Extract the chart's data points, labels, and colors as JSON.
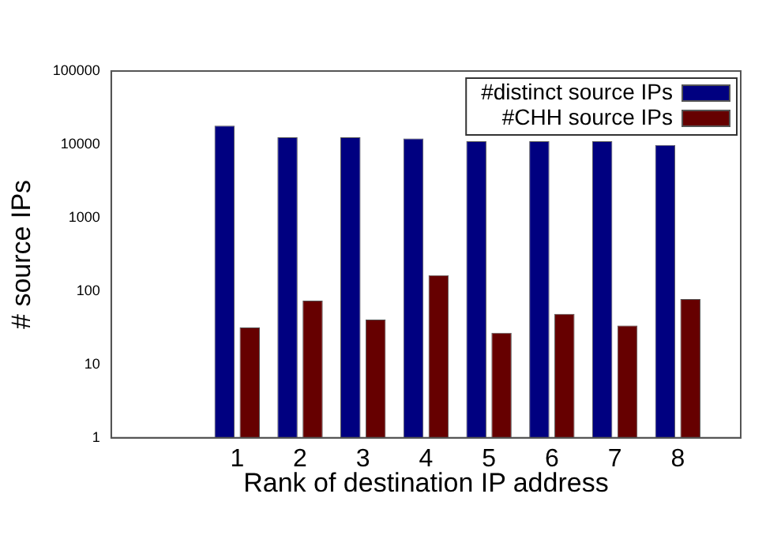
{
  "chart_data": {
    "type": "bar",
    "xlabel": "Rank of destination IP address",
    "ylabel": "# source IPs",
    "x": [
      1,
      2,
      3,
      4,
      5,
      6,
      7,
      8
    ],
    "xlim": [
      -1,
      9
    ],
    "xticks": [
      1,
      2,
      3,
      4,
      5,
      6,
      7,
      8
    ],
    "ylim": [
      1,
      100000
    ],
    "yticks": [
      1,
      10,
      100,
      1000,
      10000,
      100000
    ],
    "log": "y",
    "grid": false,
    "legend": "top right",
    "series": [
      {
        "name": "#distinct source IPs",
        "color": "#000080",
        "values": [
          18000,
          12500,
          12500,
          12000,
          11000,
          11000,
          11000,
          9800
        ]
      },
      {
        "name": "#CHH source IPs",
        "color": "#660000",
        "values": [
          32,
          74,
          41,
          165,
          27,
          49,
          34,
          78
        ]
      }
    ]
  }
}
